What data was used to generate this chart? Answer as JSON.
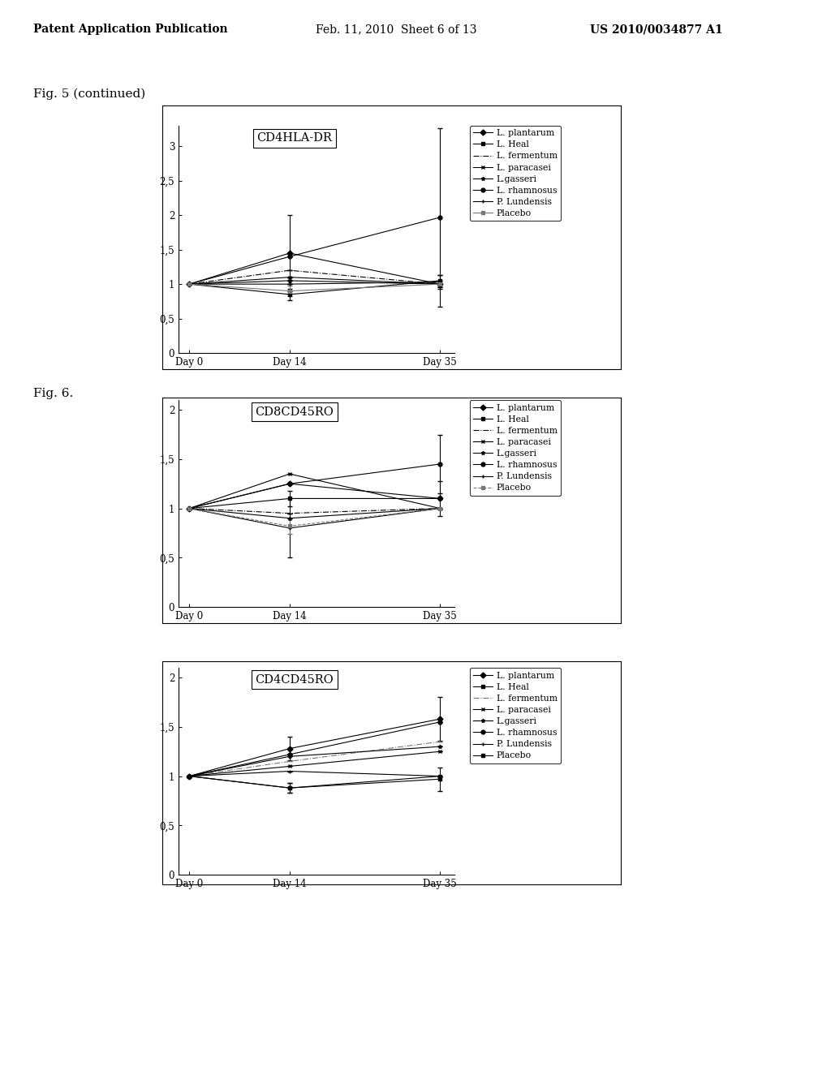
{
  "page_header_left": "Patent Application Publication",
  "page_header_mid": "Feb. 11, 2010  Sheet 6 of 13",
  "page_header_right": "US 2010/0034877 A1",
  "fig_label1": "Fig. 5 (continued)",
  "fig_label2": "Fig. 6.",
  "charts": [
    {
      "title": "CD4HLA-DR",
      "ylim": [
        0,
        3.3
      ],
      "yticks": [
        0,
        0.5,
        1,
        1.5,
        2,
        2.5,
        3
      ],
      "ytick_labels": [
        "0",
        "0,5",
        "1",
        "1,5",
        "2",
        "2,5",
        "3"
      ],
      "xtick_labels": [
        "Day 0",
        "Day 14",
        "Day 35"
      ],
      "series": [
        {
          "label": "L. plantarum",
          "marker": "D",
          "linestyle": "-",
          "color": "#000000",
          "values": [
            1.0,
            1.45,
            1.0
          ],
          "yerr": [
            0,
            0.55,
            0.05
          ]
        },
        {
          "label": "L. Heal",
          "marker": "s",
          "linestyle": "-",
          "color": "#000000",
          "values": [
            1.0,
            0.85,
            1.05
          ],
          "yerr": [
            0,
            0.08,
            0.08
          ]
        },
        {
          "label": "L. fermentum",
          "marker": "None",
          "linestyle": "-.",
          "color": "#000000",
          "values": [
            1.0,
            1.2,
            1.0
          ],
          "yerr": [
            0,
            0.0,
            0.0
          ]
        },
        {
          "label": "L. paracasei",
          "marker": "x",
          "linestyle": "-",
          "color": "#000000",
          "values": [
            1.0,
            1.1,
            1.0
          ],
          "yerr": [
            0,
            0.0,
            0.0
          ]
        },
        {
          "label": "L.gasseri",
          "marker": "*",
          "linestyle": "-",
          "color": "#000000",
          "values": [
            1.0,
            1.05,
            1.0
          ],
          "yerr": [
            0,
            0.0,
            0.0
          ]
        },
        {
          "label": "L. rhamnosus",
          "marker": "o",
          "linestyle": "-",
          "color": "#000000",
          "values": [
            1.0,
            1.4,
            1.97
          ],
          "yerr": [
            0,
            0.0,
            1.3
          ]
        },
        {
          "label": "P. Lundensis",
          "marker": "+",
          "linestyle": "-",
          "color": "#000000",
          "values": [
            1.0,
            1.0,
            1.03
          ],
          "yerr": [
            0,
            0.0,
            0.1
          ]
        },
        {
          "label": "Placebo",
          "marker": "s",
          "linestyle": "-",
          "color": "#777777",
          "values": [
            1.0,
            0.9,
            1.0
          ],
          "yerr": [
            0,
            0.08,
            0.0
          ]
        }
      ]
    },
    {
      "title": "CD8CD45RO",
      "ylim": [
        0,
        2.1
      ],
      "yticks": [
        0,
        0.5,
        1,
        1.5,
        2
      ],
      "ytick_labels": [
        "0",
        "0,5",
        "1",
        "1,5",
        "2"
      ],
      "xtick_labels": [
        "Day 0",
        "Day 14",
        "Day 35"
      ],
      "series": [
        {
          "label": "L. plantarum",
          "marker": "D",
          "linestyle": "-",
          "color": "#000000",
          "values": [
            1.0,
            1.25,
            1.1
          ],
          "yerr": [
            0,
            0.0,
            0.0
          ]
        },
        {
          "label": "L. Heal",
          "marker": "s",
          "linestyle": "-",
          "color": "#000000",
          "values": [
            1.0,
            1.1,
            1.1
          ],
          "yerr": [
            0,
            0.08,
            0.18
          ]
        },
        {
          "label": "L. fermentum",
          "marker": "None",
          "linestyle": "-.",
          "color": "#000000",
          "values": [
            1.0,
            0.95,
            1.0
          ],
          "yerr": [
            0,
            0.0,
            0.0
          ]
        },
        {
          "label": "L. paracasei",
          "marker": "x",
          "linestyle": "-",
          "color": "#000000",
          "values": [
            1.0,
            1.35,
            1.0
          ],
          "yerr": [
            0,
            0.0,
            0.0
          ]
        },
        {
          "label": "L.gasseri",
          "marker": "*",
          "linestyle": "-",
          "color": "#000000",
          "values": [
            1.0,
            0.9,
            1.0
          ],
          "yerr": [
            0,
            0.0,
            0.0
          ]
        },
        {
          "label": "L. rhamnosus",
          "marker": "o",
          "linestyle": "-",
          "color": "#000000",
          "values": [
            1.0,
            1.25,
            1.45
          ],
          "yerr": [
            0,
            0.0,
            0.3
          ]
        },
        {
          "label": "P. Lundensis",
          "marker": "+",
          "linestyle": "-",
          "color": "#000000",
          "values": [
            1.0,
            0.8,
            1.0
          ],
          "yerr": [
            0,
            0.3,
            0.0
          ]
        },
        {
          "label": "Placebo",
          "marker": "s",
          "linestyle": "--",
          "color": "#777777",
          "values": [
            1.0,
            0.82,
            1.0
          ],
          "yerr": [
            0,
            0.08,
            0.0
          ]
        }
      ]
    },
    {
      "title": "CD4CD45RO",
      "ylim": [
        0,
        2.1
      ],
      "yticks": [
        0,
        0.5,
        1,
        1.5,
        2
      ],
      "ytick_labels": [
        "0",
        "0,5",
        "1",
        "1,5",
        "2"
      ],
      "xtick_labels": [
        "Day 0",
        "Day 14",
        "Day 35"
      ],
      "series": [
        {
          "label": "L. plantarum",
          "marker": "D",
          "linestyle": "-",
          "color": "#000000",
          "values": [
            1.0,
            1.28,
            1.58
          ],
          "yerr": [
            0,
            0.12,
            0.22
          ]
        },
        {
          "label": "L. Heal",
          "marker": "s",
          "linestyle": "-",
          "color": "#000000",
          "values": [
            1.0,
            0.88,
            0.97
          ],
          "yerr": [
            0,
            0.05,
            0.12
          ]
        },
        {
          "label": "L. fermentum",
          "marker": "None",
          "linestyle": "-.",
          "color": "#777777",
          "values": [
            1.0,
            1.15,
            1.35
          ],
          "yerr": [
            0,
            0.0,
            0.0
          ]
        },
        {
          "label": "L. paracasei",
          "marker": "x",
          "linestyle": "-",
          "color": "#000000",
          "values": [
            1.0,
            1.1,
            1.25
          ],
          "yerr": [
            0,
            0.0,
            0.0
          ]
        },
        {
          "label": "L.gasseri",
          "marker": "*",
          "linestyle": "-",
          "color": "#000000",
          "values": [
            1.0,
            1.2,
            1.3
          ],
          "yerr": [
            0,
            0.0,
            0.0
          ]
        },
        {
          "label": "L. rhamnosus",
          "marker": "o",
          "linestyle": "-",
          "color": "#000000",
          "values": [
            1.0,
            1.22,
            1.55
          ],
          "yerr": [
            0,
            0.0,
            0.0
          ]
        },
        {
          "label": "P. Lundensis",
          "marker": "+",
          "linestyle": "-",
          "color": "#000000",
          "values": [
            1.0,
            1.05,
            1.0
          ],
          "yerr": [
            0,
            0.0,
            0.0
          ]
        },
        {
          "label": "Placebo",
          "marker": "s",
          "linestyle": "-",
          "color": "#000000",
          "values": [
            1.0,
            0.88,
            1.0
          ],
          "yerr": [
            0,
            0.05,
            0.0
          ]
        }
      ]
    }
  ]
}
